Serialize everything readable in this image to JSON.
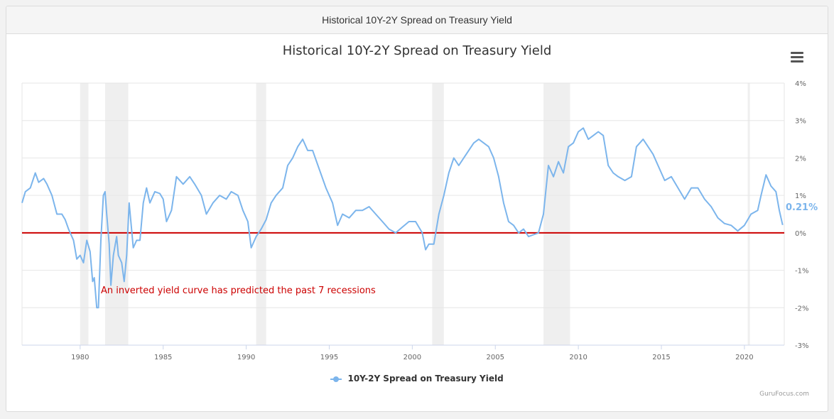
{
  "header": {
    "title": "Historical 10Y-2Y Spread on Treasury Yield"
  },
  "credit": "GuruFocus.com",
  "colors": {
    "series": "#7cb5ec",
    "zero_line": "#cc0000",
    "annotation": "#cc0000",
    "recession": "#efefef"
  },
  "icons": {
    "menu": "hamburger-menu-icon"
  },
  "chart_data": {
    "type": "line",
    "title": "Historical 10Y-2Y Spread on Treasury Yield",
    "xlabel": "",
    "ylabel": "",
    "xlim": [
      1976.5,
      2022.4
    ],
    "ylim": [
      -3,
      4
    ],
    "x_ticks": [
      1980,
      1985,
      1990,
      1995,
      2000,
      2005,
      2010,
      2015,
      2020
    ],
    "y_ticks": [
      {
        "value": 4,
        "label": "4%"
      },
      {
        "value": 3,
        "label": "3%"
      },
      {
        "value": 2,
        "label": "2%"
      },
      {
        "value": 1,
        "label": "1%"
      },
      {
        "value": 0,
        "label": "0%"
      },
      {
        "value": -1,
        "label": "-1%"
      },
      {
        "value": -2,
        "label": "-2%"
      },
      {
        "value": -3,
        "label": "-3%"
      }
    ],
    "y_axis_position": "right",
    "grid": true,
    "legend_position": "bottom",
    "last_value_label": "0.21%",
    "reference_line": {
      "value": 0
    },
    "annotation": "An inverted yield curve has predicted the past 7 recessions",
    "recessions": [
      [
        1980.0,
        1980.5
      ],
      [
        1981.5,
        1982.9
      ],
      [
        1990.6,
        1991.2
      ],
      [
        2001.2,
        2001.9
      ],
      [
        2007.9,
        2009.5
      ],
      [
        2020.2,
        2020.3
      ]
    ],
    "series": [
      {
        "name": "10Y-2Y Spread on Treasury Yield",
        "points": [
          [
            1976.5,
            0.8
          ],
          [
            1976.7,
            1.1
          ],
          [
            1977.0,
            1.2
          ],
          [
            1977.3,
            1.6
          ],
          [
            1977.5,
            1.35
          ],
          [
            1977.8,
            1.45
          ],
          [
            1978.0,
            1.3
          ],
          [
            1978.3,
            1.0
          ],
          [
            1978.6,
            0.5
          ],
          [
            1978.9,
            0.5
          ],
          [
            1979.1,
            0.35
          ],
          [
            1979.3,
            0.1
          ],
          [
            1979.6,
            -0.2
          ],
          [
            1979.8,
            -0.7
          ],
          [
            1980.0,
            -0.6
          ],
          [
            1980.2,
            -0.8
          ],
          [
            1980.4,
            -0.2
          ],
          [
            1980.6,
            -0.5
          ],
          [
            1980.75,
            -1.3
          ],
          [
            1980.85,
            -1.2
          ],
          [
            1981.0,
            -2.0
          ],
          [
            1981.1,
            -2.0
          ],
          [
            1981.25,
            -0.2
          ],
          [
            1981.4,
            1.0
          ],
          [
            1981.5,
            1.1
          ],
          [
            1981.6,
            0.5
          ],
          [
            1981.75,
            -0.3
          ],
          [
            1981.85,
            -1.4
          ],
          [
            1982.0,
            -0.6
          ],
          [
            1982.2,
            -0.1
          ],
          [
            1982.3,
            -0.6
          ],
          [
            1982.5,
            -0.8
          ],
          [
            1982.65,
            -1.3
          ],
          [
            1982.8,
            -0.6
          ],
          [
            1982.95,
            0.8
          ],
          [
            1983.2,
            -0.4
          ],
          [
            1983.4,
            -0.2
          ],
          [
            1983.6,
            -0.2
          ],
          [
            1983.8,
            0.8
          ],
          [
            1984.0,
            1.2
          ],
          [
            1984.2,
            0.8
          ],
          [
            1984.5,
            1.1
          ],
          [
            1984.8,
            1.05
          ],
          [
            1985.0,
            0.9
          ],
          [
            1985.2,
            0.3
          ],
          [
            1985.5,
            0.6
          ],
          [
            1985.8,
            1.5
          ],
          [
            1986.2,
            1.3
          ],
          [
            1986.6,
            1.5
          ],
          [
            1986.9,
            1.3
          ],
          [
            1987.3,
            1.0
          ],
          [
            1987.6,
            0.5
          ],
          [
            1988.0,
            0.8
          ],
          [
            1988.4,
            1.0
          ],
          [
            1988.8,
            0.9
          ],
          [
            1989.1,
            1.1
          ],
          [
            1989.5,
            1.0
          ],
          [
            1989.8,
            0.6
          ],
          [
            1990.1,
            0.3
          ],
          [
            1990.3,
            -0.4
          ],
          [
            1990.6,
            -0.1
          ],
          [
            1990.9,
            0.1
          ],
          [
            1991.2,
            0.35
          ],
          [
            1991.5,
            0.8
          ],
          [
            1991.8,
            1.0
          ],
          [
            1992.2,
            1.2
          ],
          [
            1992.5,
            1.8
          ],
          [
            1992.8,
            2.0
          ],
          [
            1993.1,
            2.3
          ],
          [
            1993.4,
            2.5
          ],
          [
            1993.7,
            2.2
          ],
          [
            1994.0,
            2.2
          ],
          [
            1994.4,
            1.7
          ],
          [
            1994.8,
            1.2
          ],
          [
            1995.2,
            0.8
          ],
          [
            1995.5,
            0.2
          ],
          [
            1995.8,
            0.5
          ],
          [
            1996.2,
            0.4
          ],
          [
            1996.6,
            0.6
          ],
          [
            1997.0,
            0.6
          ],
          [
            1997.4,
            0.7
          ],
          [
            1997.8,
            0.5
          ],
          [
            1998.2,
            0.3
          ],
          [
            1998.6,
            0.1
          ],
          [
            1999.0,
            0.0
          ],
          [
            1999.4,
            0.15
          ],
          [
            1999.8,
            0.3
          ],
          [
            2000.2,
            0.3
          ],
          [
            2000.6,
            0.0
          ],
          [
            2000.8,
            -0.45
          ],
          [
            2001.0,
            -0.3
          ],
          [
            2001.3,
            -0.3
          ],
          [
            2001.6,
            0.5
          ],
          [
            2001.9,
            1.0
          ],
          [
            2002.2,
            1.6
          ],
          [
            2002.5,
            2.0
          ],
          [
            2002.8,
            1.8
          ],
          [
            2003.1,
            2.0
          ],
          [
            2003.4,
            2.2
          ],
          [
            2003.7,
            2.4
          ],
          [
            2004.0,
            2.5
          ],
          [
            2004.3,
            2.4
          ],
          [
            2004.6,
            2.3
          ],
          [
            2004.9,
            2.0
          ],
          [
            2005.2,
            1.5
          ],
          [
            2005.5,
            0.8
          ],
          [
            2005.8,
            0.3
          ],
          [
            2006.1,
            0.2
          ],
          [
            2006.4,
            0.0
          ],
          [
            2006.7,
            0.1
          ],
          [
            2007.0,
            -0.1
          ],
          [
            2007.3,
            -0.05
          ],
          [
            2007.6,
            0.0
          ],
          [
            2007.9,
            0.5
          ],
          [
            2008.2,
            1.8
          ],
          [
            2008.5,
            1.5
          ],
          [
            2008.8,
            1.9
          ],
          [
            2009.1,
            1.6
          ],
          [
            2009.4,
            2.3
          ],
          [
            2009.7,
            2.4
          ],
          [
            2010.0,
            2.7
          ],
          [
            2010.3,
            2.8
          ],
          [
            2010.6,
            2.5
          ],
          [
            2010.9,
            2.6
          ],
          [
            2011.2,
            2.7
          ],
          [
            2011.5,
            2.6
          ],
          [
            2011.8,
            1.8
          ],
          [
            2012.1,
            1.6
          ],
          [
            2012.4,
            1.5
          ],
          [
            2012.8,
            1.4
          ],
          [
            2013.2,
            1.5
          ],
          [
            2013.5,
            2.3
          ],
          [
            2013.9,
            2.5
          ],
          [
            2014.2,
            2.3
          ],
          [
            2014.5,
            2.1
          ],
          [
            2014.8,
            1.8
          ],
          [
            2015.2,
            1.4
          ],
          [
            2015.6,
            1.5
          ],
          [
            2016.0,
            1.2
          ],
          [
            2016.4,
            0.9
          ],
          [
            2016.8,
            1.2
          ],
          [
            2017.2,
            1.2
          ],
          [
            2017.6,
            0.9
          ],
          [
            2018.0,
            0.7
          ],
          [
            2018.4,
            0.4
          ],
          [
            2018.8,
            0.25
          ],
          [
            2019.2,
            0.2
          ],
          [
            2019.6,
            0.05
          ],
          [
            2020.0,
            0.2
          ],
          [
            2020.4,
            0.5
          ],
          [
            2020.8,
            0.6
          ],
          [
            2021.0,
            1.0
          ],
          [
            2021.3,
            1.55
          ],
          [
            2021.6,
            1.25
          ],
          [
            2021.9,
            1.1
          ],
          [
            2022.1,
            0.6
          ],
          [
            2022.3,
            0.21
          ]
        ]
      }
    ]
  }
}
